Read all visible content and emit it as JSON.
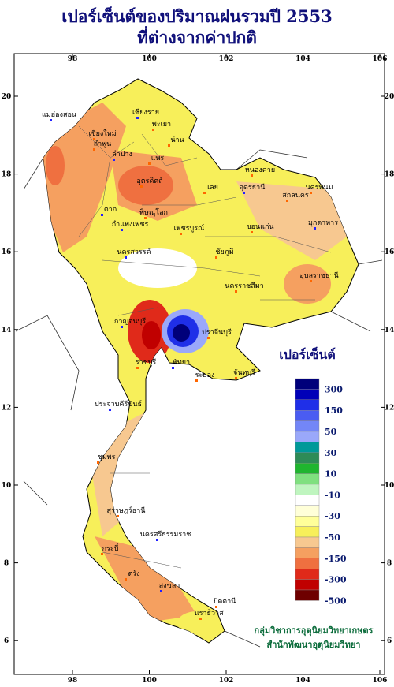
{
  "header": {
    "title_line1": "เปอร์เซ็นต์ของปริมาณฝนรวมปี  2553",
    "title_line2": "ที่ต่างจากค่าปกติ"
  },
  "map": {
    "xticks": [
      98,
      100,
      102,
      104,
      106
    ],
    "yticks": [
      20,
      18,
      16,
      14,
      12,
      10,
      8,
      6
    ],
    "places": [
      "เชียงราย",
      "พะเยา",
      "น่าน",
      "แม่ฮ่องสอน",
      "เชียงใหม่",
      "ลำพูน",
      "ลำปาง",
      "แพร่",
      "อุตรดิตถ์",
      "ตาก",
      "พิษณุโลก",
      "เพชรบูรณ์",
      "กำแพงเพชร",
      "เลย",
      "หนองคาย",
      "อุดรธานี",
      "สกลนคร",
      "นครพนม",
      "มุกดาหาร",
      "ขอนแก่น",
      "ชัยภูมิ",
      "นครสวรรค์",
      "นครราชสีมา",
      "อุบลราชธานี",
      "กาญจนบุรี",
      "ราชบุรี",
      "ปราจีนบุรี",
      "พัทยา",
      "ระยอง",
      "จันทบุรี",
      "ประจวบคีรีขันธ์",
      "ชุมพร",
      "สุราษฎร์ธานี",
      "นครศรีธรรมราช",
      "กระบี่",
      "ตรัง",
      "สงขลา",
      "ปัตตานี",
      "นราธิวาส"
    ]
  },
  "legend": {
    "title": "เปอร์เซ็นต์",
    "labels": [
      300,
      150,
      50,
      30,
      10,
      -10,
      -30,
      -50,
      -150,
      -300,
      -500
    ],
    "colors": [
      "#00007a",
      "#0000b8",
      "#1f2fe8",
      "#4a5cf2",
      "#7386f7",
      "#9aa8fa",
      "#009999",
      "#2e8b57",
      "#1fb52f",
      "#7fe07f",
      "#bff5bf",
      "#ffffff",
      "#ffffd8",
      "#ffff99",
      "#f7ef5a",
      "#f7c890",
      "#f5a060",
      "#ef7040",
      "#e02a1a",
      "#c00000",
      "#6e0000"
    ]
  },
  "credit": {
    "line1": "กลุ่มวิชาการอุตุนิยมวิทยาเกษตร",
    "line2": "สำนักพัฒนาอุตุนิยมวิทยา"
  }
}
